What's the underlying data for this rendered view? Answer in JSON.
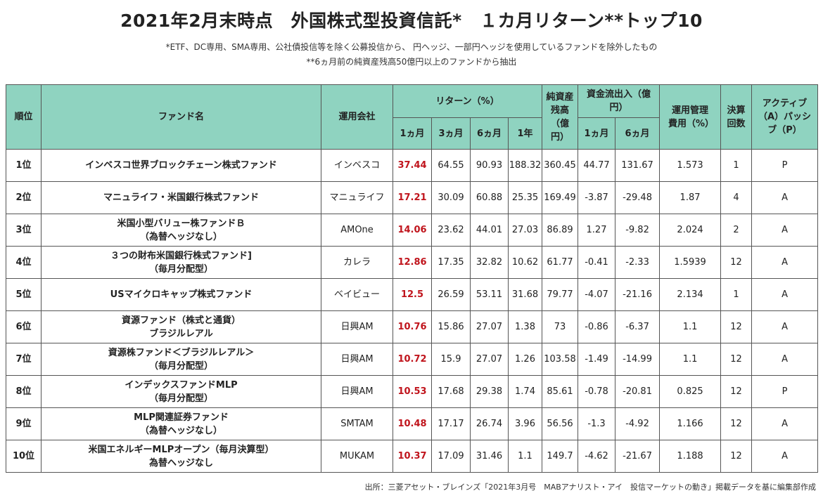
{
  "title": "2021年2月末時点　外国株式型投資信託*　１カ月リターン**トップ10",
  "note1": "*ETF、DC専用、SMA専用、公社債投信等を除く公募投信から、 円ヘッジ、一部円ヘッジを使用しているファンドを除外したもの",
  "note2": "**6ヵ月前の純資産残高50億円以上のファンドから抽出",
  "header": {
    "rank": "順位",
    "fund": "ファンド名",
    "company": "運用会社",
    "return_group": "リターン（%）",
    "r1": "1ヵ月",
    "r3": "3ヵ月",
    "r6": "6ヵ月",
    "r12": "1年",
    "assets": "純資産残高（億円）",
    "flow_group": "資金流出入（億円）",
    "f1": "1ヵ月",
    "f6": "6ヵ月",
    "fee": "運用管理費用（%）",
    "settle": "決算回数",
    "ap": "アクティブ（A）パッシブ（P）"
  },
  "rows": [
    {
      "rank": "1位",
      "fund_l1": "インベスコ世界ブロックチェーン株式ファンド",
      "fund_l2": "",
      "company": "インベスコ",
      "r1": "37.44",
      "r3": "64.55",
      "r6": "90.93",
      "r12": "188.32",
      "assets": "360.45",
      "f1": "44.77",
      "f6": "131.67",
      "fee": "1.573",
      "settle": "1",
      "ap": "P"
    },
    {
      "rank": "2位",
      "fund_l1": "マニュライフ・米国銀行株式ファンド",
      "fund_l2": "",
      "company": "マニュライフ",
      "r1": "17.21",
      "r3": "30.09",
      "r6": "60.88",
      "r12": "25.35",
      "assets": "169.49",
      "f1": "-3.87",
      "f6": "-29.48",
      "fee": "1.87",
      "settle": "4",
      "ap": "A"
    },
    {
      "rank": "3位",
      "fund_l1": "米国小型バリュー株ファンドＢ",
      "fund_l2": "（為替ヘッジなし）",
      "company": "AMOne",
      "r1": "14.06",
      "r3": "23.62",
      "r6": "44.01",
      "r12": "27.03",
      "assets": "86.89",
      "f1": "1.27",
      "f6": "-9.82",
      "fee": "2.024",
      "settle": "2",
      "ap": "A"
    },
    {
      "rank": "4位",
      "fund_l1": "３つの財布米国銀行株式ファンド]",
      "fund_l2": "（毎月分配型）",
      "company": "カレラ",
      "r1": "12.86",
      "r3": "17.35",
      "r6": "32.82",
      "r12": "10.62",
      "assets": "61.77",
      "f1": "-0.41",
      "f6": "-2.33",
      "fee": "1.5939",
      "settle": "12",
      "ap": "A"
    },
    {
      "rank": "5位",
      "fund_l1": "USマイクロキャップ株式ファンド",
      "fund_l2": "",
      "company": "ベイビュー",
      "r1": "12.5",
      "r3": "26.59",
      "r6": "53.11",
      "r12": "31.68",
      "assets": "79.77",
      "f1": "-4.07",
      "f6": "-21.16",
      "fee": "2.134",
      "settle": "1",
      "ap": "A"
    },
    {
      "rank": "6位",
      "fund_l1": "資源ファンド（株式と通貨）",
      "fund_l2": "ブラジルレアル",
      "company": "日興AM",
      "r1": "10.76",
      "r3": "15.86",
      "r6": "27.07",
      "r12": "1.38",
      "assets": "73",
      "f1": "-0.86",
      "f6": "-6.37",
      "fee": "1.1",
      "settle": "12",
      "ap": "A"
    },
    {
      "rank": "7位",
      "fund_l1": "資源株ファンド＜ブラジルレアル＞",
      "fund_l2": "（毎月分配型）",
      "company": "日興AM",
      "r1": "10.72",
      "r3": "15.9",
      "r6": "27.07",
      "r12": "1.26",
      "assets": "103.58",
      "f1": "-1.49",
      "f6": "-14.99",
      "fee": "1.1",
      "settle": "12",
      "ap": "A"
    },
    {
      "rank": "8位",
      "fund_l1": "インデックスファンドMLP",
      "fund_l2": "（毎月分配型）",
      "company": "日興AM",
      "r1": "10.53",
      "r3": "17.68",
      "r6": "29.38",
      "r12": "1.74",
      "assets": "85.61",
      "f1": "-0.78",
      "f6": "-20.81",
      "fee": "0.825",
      "settle": "12",
      "ap": "P"
    },
    {
      "rank": "9位",
      "fund_l1": "MLP関連証券ファンド",
      "fund_l2": "（為替ヘッジなし）",
      "company": "SMTAM",
      "r1": "10.48",
      "r3": "17.17",
      "r6": "26.74",
      "r12": "3.96",
      "assets": "56.56",
      "f1": "-1.3",
      "f6": "-4.92",
      "fee": "1.166",
      "settle": "12",
      "ap": "A"
    },
    {
      "rank": "10位",
      "fund_l1": "米国エネルギーMLPオープン（毎月決算型）",
      "fund_l2": "為替ヘッジなし",
      "company": "MUKAM",
      "r1": "10.37",
      "r3": "17.09",
      "r6": "31.46",
      "r12": "1.1",
      "assets": "149.7",
      "f1": "-4.62",
      "f6": "-21.67",
      "fee": "1.188",
      "settle": "12",
      "ap": "A"
    }
  ],
  "source": "出所：三菱アセット・ブレインズ「2021年3月号　MABアナリスト・アイ　投信マーケットの動き」掲載データを基に編集部作成",
  "colors": {
    "header_bg": "#8fd3c0",
    "highlight": "#c0141c"
  }
}
